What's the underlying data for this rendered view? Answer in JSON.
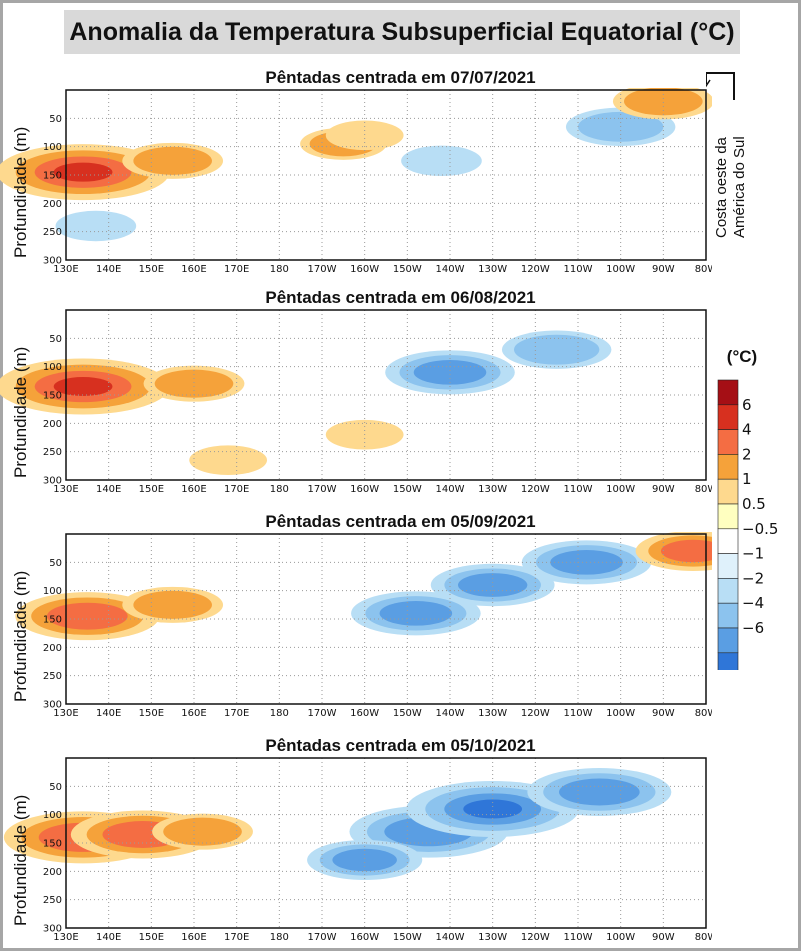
{
  "title": "Anomalia da Temperatura Subsuperficial Equatorial (°C)",
  "coast_note": [
    "Costa oeste da",
    "América do Sul"
  ],
  "colorbar": {
    "unit": "(°C)",
    "labels": [
      "6",
      "4",
      "2",
      "1",
      "0.5",
      "−0.5",
      "−1",
      "−2",
      "−4",
      "−6"
    ],
    "colors": [
      "#a50f15",
      "#d7301f",
      "#f46d43",
      "#f5a23a",
      "#fed98e",
      "#ffffc0",
      "#ffffff",
      "#dff1fb",
      "#b8def5",
      "#8cc3ee",
      "#5a9ee3",
      "#2f76d8",
      "#1b58c4"
    ]
  },
  "chart_data": [
    {
      "type": "heatmap",
      "title": "Pêntadas centrada em 07/07/2021",
      "ylabel": "Profundidade (m)",
      "x_ticks": [
        "130E",
        "140E",
        "150E",
        "160E",
        "170E",
        "180",
        "170W",
        "160W",
        "150W",
        "140W",
        "130W",
        "120W",
        "110W",
        "100W",
        "90W",
        "80W"
      ],
      "y_ticks": [
        "50",
        "100",
        "150",
        "200",
        "250",
        "300"
      ],
      "xlim_lon_e": [
        130,
        280
      ],
      "ylim": [
        300,
        0
      ],
      "anomalies": [
        {
          "lon": 134,
          "depth": 145,
          "value": 4
        },
        {
          "lon": 155,
          "depth": 125,
          "value": 1.5
        },
        {
          "lon": 195,
          "depth": 95,
          "value": 1
        },
        {
          "lon": 200,
          "depth": 80,
          "value": 0.7
        },
        {
          "lon": 260,
          "depth": 65,
          "value": -1.8
        },
        {
          "lon": 270,
          "depth": 20,
          "value": 1.5
        },
        {
          "lon": 218,
          "depth": 125,
          "value": -0.8
        },
        {
          "lon": 137,
          "depth": 240,
          "value": -0.8
        }
      ]
    },
    {
      "type": "heatmap",
      "title": "Pêntadas centrada em 06/08/2021",
      "ylabel": "Profundidade (m)",
      "x_ticks": [
        "130E",
        "140E",
        "150E",
        "160E",
        "170E",
        "180",
        "170W",
        "160W",
        "150W",
        "140W",
        "130W",
        "120W",
        "110W",
        "100W",
        "90W",
        "80W"
      ],
      "y_ticks": [
        "50",
        "100",
        "150",
        "200",
        "250",
        "300"
      ],
      "xlim_lon_e": [
        130,
        280
      ],
      "ylim": [
        300,
        0
      ],
      "anomalies": [
        {
          "lon": 134,
          "depth": 135,
          "value": 4
        },
        {
          "lon": 160,
          "depth": 130,
          "value": 1.5
        },
        {
          "lon": 220,
          "depth": 110,
          "value": -2.5
        },
        {
          "lon": 245,
          "depth": 70,
          "value": -1.8
        },
        {
          "lon": 200,
          "depth": 220,
          "value": 0.7
        },
        {
          "lon": 168,
          "depth": 265,
          "value": 0.7
        }
      ]
    },
    {
      "type": "heatmap",
      "title": "Pêntadas centrada em 05/09/2021",
      "ylabel": "Profundidade (m)",
      "x_ticks": [
        "130E",
        "140E",
        "150E",
        "160E",
        "170E",
        "180",
        "170W",
        "160W",
        "150W",
        "140W",
        "130W",
        "120W",
        "110W",
        "100W",
        "90W",
        "80W"
      ],
      "y_ticks": [
        "50",
        "100",
        "150",
        "200",
        "250",
        "300"
      ],
      "xlim_lon_e": [
        130,
        280
      ],
      "ylim": [
        300,
        0
      ],
      "anomalies": [
        {
          "lon": 135,
          "depth": 145,
          "value": 3
        },
        {
          "lon": 155,
          "depth": 125,
          "value": 1.5
        },
        {
          "lon": 212,
          "depth": 140,
          "value": -2.5
        },
        {
          "lon": 230,
          "depth": 90,
          "value": -2.3
        },
        {
          "lon": 252,
          "depth": 50,
          "value": -2.5
        },
        {
          "lon": 277,
          "depth": 30,
          "value": 2
        }
      ]
    },
    {
      "type": "heatmap",
      "title": "Pêntadas centrada em 05/10/2021",
      "ylabel": "Profundidade (m)",
      "x_ticks": [
        "130E",
        "140E",
        "150E",
        "160E",
        "170E",
        "180",
        "170W",
        "160W",
        "150W",
        "140W",
        "130W",
        "120W",
        "110W",
        "100W",
        "90W",
        "80W"
      ],
      "y_ticks": [
        "50",
        "100",
        "150",
        "200",
        "250",
        "300"
      ],
      "xlim_lon_e": [
        130,
        280
      ],
      "ylim": [
        300,
        0
      ],
      "anomalies": [
        {
          "lon": 134,
          "depth": 140,
          "value": 3.5
        },
        {
          "lon": 148,
          "depth": 135,
          "value": 3
        },
        {
          "lon": 162,
          "depth": 130,
          "value": 1.5
        },
        {
          "lon": 215,
          "depth": 130,
          "value": -3.5
        },
        {
          "lon": 230,
          "depth": 90,
          "value": -4
        },
        {
          "lon": 255,
          "depth": 60,
          "value": -3
        },
        {
          "lon": 200,
          "depth": 180,
          "value": -2
        }
      ]
    }
  ]
}
